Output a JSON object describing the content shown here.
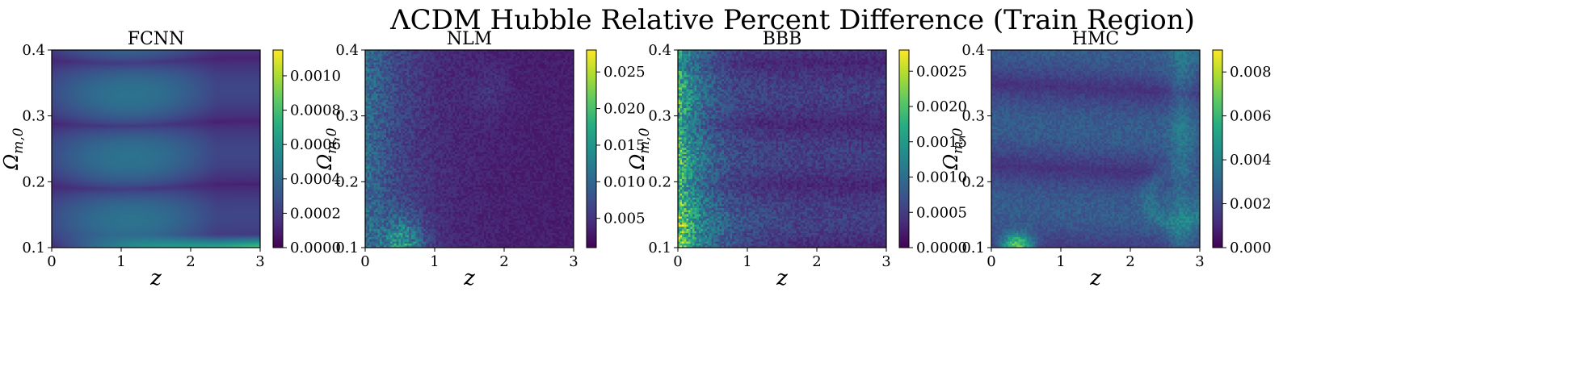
{
  "figure": {
    "title": "ΛCDM Hubble Relative Percent Difference (Train Region)"
  },
  "chart_data": [
    {
      "type": "heatmap",
      "title": "FCNN",
      "xlabel": "z",
      "ylabel": "Ω_{m,0}",
      "xlim": [
        0,
        3
      ],
      "ylim": [
        0.1,
        0.4
      ],
      "x_ticks": [
        "0",
        "1",
        "2",
        "3"
      ],
      "y_ticks": [
        "0.1",
        "0.2",
        "0.3",
        "0.4"
      ],
      "colorbar": {
        "colormap": "viridis",
        "range": [
          0,
          0.00115
        ],
        "ticks": [
          0,
          0.0002,
          0.0004,
          0.0006,
          0.0008,
          0.001
        ],
        "tick_labels": [
          "0.0000",
          "0.0002",
          "0.0004",
          "0.0006",
          "0.0008",
          "0.0010"
        ]
      }
    },
    {
      "type": "heatmap",
      "title": "NLM",
      "xlabel": "z",
      "ylabel": "Ω_{m,0}",
      "xlim": [
        0,
        3
      ],
      "ylim": [
        0.1,
        0.4
      ],
      "x_ticks": [
        "0",
        "1",
        "2",
        "3"
      ],
      "y_ticks": [
        "0.1",
        "0.2",
        "0.3",
        "0.4"
      ],
      "colorbar": {
        "colormap": "viridis",
        "range": [
          0.001,
          0.028
        ],
        "ticks": [
          0.005,
          0.01,
          0.015,
          0.02,
          0.025
        ],
        "tick_labels": [
          "0.005",
          "0.010",
          "0.015",
          "0.020",
          "0.025"
        ]
      }
    },
    {
      "type": "heatmap",
      "title": "BBB",
      "xlabel": "z",
      "ylabel": "Ω_{m,0}",
      "xlim": [
        0,
        3
      ],
      "ylim": [
        0.1,
        0.4
      ],
      "x_ticks": [
        "0",
        "1",
        "2",
        "3"
      ],
      "y_ticks": [
        "0.1",
        "0.2",
        "0.3",
        "0.4"
      ],
      "colorbar": {
        "colormap": "viridis",
        "range": [
          0,
          0.0028
        ],
        "ticks": [
          0,
          0.0005,
          0.001,
          0.0015,
          0.002,
          0.0025
        ],
        "tick_labels": [
          "0.0000",
          "0.0005",
          "0.0010",
          "0.0015",
          "0.0020",
          "0.0025"
        ]
      }
    },
    {
      "type": "heatmap",
      "title": "HMC",
      "xlabel": "z",
      "ylabel": "Ω_{m,0}",
      "xlim": [
        0,
        3
      ],
      "ylim": [
        0.1,
        0.4
      ],
      "x_ticks": [
        "0",
        "1",
        "2",
        "3"
      ],
      "y_ticks": [
        "0.1",
        "0.2",
        "0.3",
        "0.4"
      ],
      "colorbar": {
        "colormap": "viridis",
        "range": [
          0,
          0.009
        ],
        "ticks": [
          0,
          0.002,
          0.004,
          0.006,
          0.008
        ],
        "tick_labels": [
          "0.000",
          "0.002",
          "0.004",
          "0.006",
          "0.008"
        ]
      }
    }
  ]
}
